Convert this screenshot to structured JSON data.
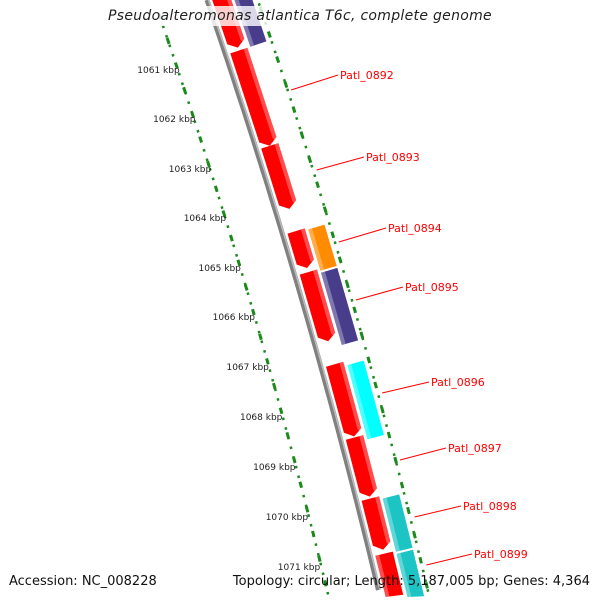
{
  "title": "Pseudoalteromonas atlantica T6c, complete genome",
  "footer": {
    "accession": "Accession: NC_008228",
    "summary": "Topology: circular; Length: 5,187,005 bp; Genes: 4,364"
  },
  "ruler_labels": [
    "1061 kbp",
    "1062 kbp",
    "1063 kbp",
    "1064 kbp",
    "1065 kbp",
    "1066 kbp",
    "1067 kbp",
    "1068 kbp",
    "1069 kbp",
    "1070 kbp",
    "1071 kbp"
  ],
  "gene_labels": [
    "Patl_0892",
    "Patl_0893",
    "Patl_0894",
    "Patl_0895",
    "Patl_0896",
    "Patl_0897",
    "Patl_0898",
    "Patl_0899"
  ],
  "colors": {
    "backbone": "#808080",
    "forward_gene": "#ff0000",
    "cog_purple": "#483d8b",
    "cog_orange": "#ff8c00",
    "cog_cyan": "#00ffff",
    "cog_teal": "#1cc4c4",
    "ruler": "#1a8a1a",
    "label": "#ff0000"
  }
}
